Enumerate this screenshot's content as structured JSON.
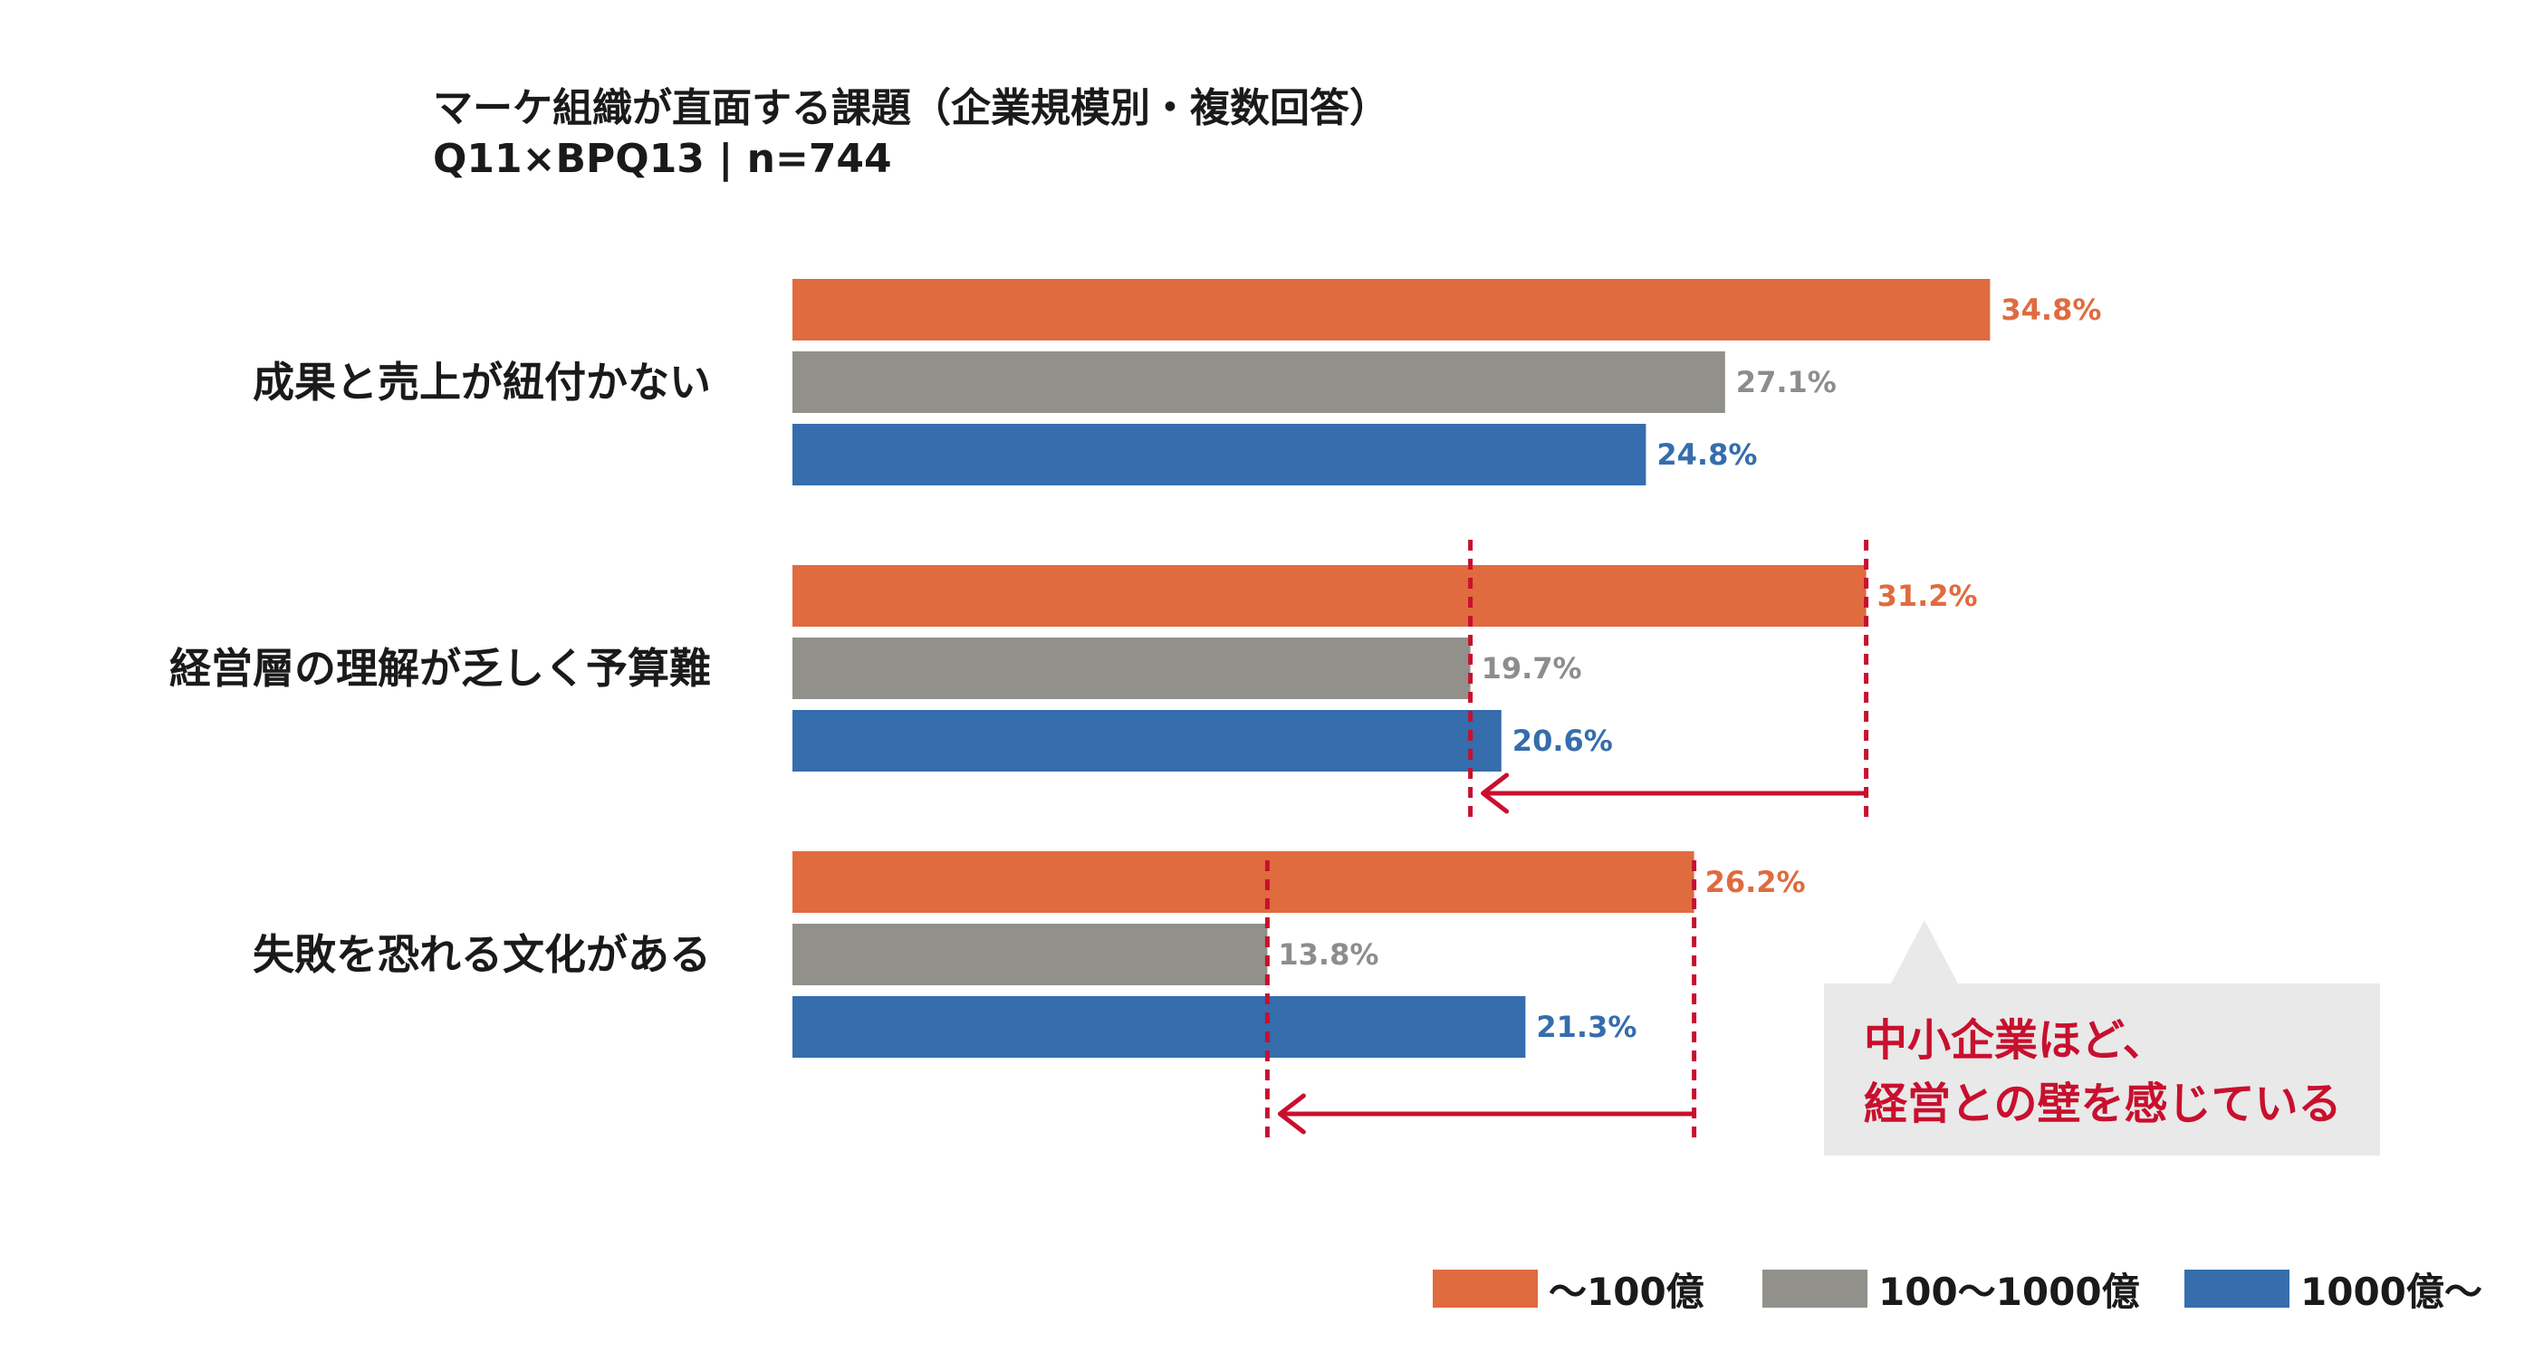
{
  "header": {
    "title": "マーケ組織が直面する課題（企業規模別・複数回答）",
    "subtitle": "Q11×BPQ13 | n=744"
  },
  "chart_data": {
    "type": "bar",
    "orientation": "horizontal",
    "categories": [
      "成果と売上が紐付かない",
      "経営層の理解が乏しく予算難",
      "失敗を恐れる文化がある"
    ],
    "series": [
      {
        "name": "〜100億",
        "values": [
          34.8,
          31.2,
          26.2
        ],
        "labels": [
          "34.8%",
          "31.2%",
          "26.2%"
        ],
        "color": "#e06b3f"
      },
      {
        "name": "100〜1000億",
        "values": [
          27.1,
          19.7,
          13.8
        ],
        "labels": [
          "27.1%",
          "19.7%",
          "13.8%"
        ],
        "color": "#91908b"
      },
      {
        "name": "1000億〜",
        "values": [
          24.8,
          20.6,
          21.3
        ],
        "labels": [
          "24.8%",
          "20.6%",
          "21.3%"
        ],
        "color": "#356dad"
      }
    ],
    "xlim": [
      0,
      35
    ],
    "grid": false,
    "legend_position": "bottom-right",
    "annotations": [
      {
        "category": "経営層の理解が乏しく予算難",
        "from_value": 31.2,
        "to_value": 19.7,
        "color": "#c8102e",
        "style": "dashed-lines-arrow-left"
      },
      {
        "category": "失敗を恐れる文化がある",
        "from_value": 26.2,
        "to_value": 13.8,
        "color": "#c8102e",
        "style": "dashed-lines-arrow-left"
      }
    ]
  },
  "callout": {
    "line1": "中小企業ほど、",
    "line2": "経営との壁を感じている",
    "color": "#c8102e"
  }
}
